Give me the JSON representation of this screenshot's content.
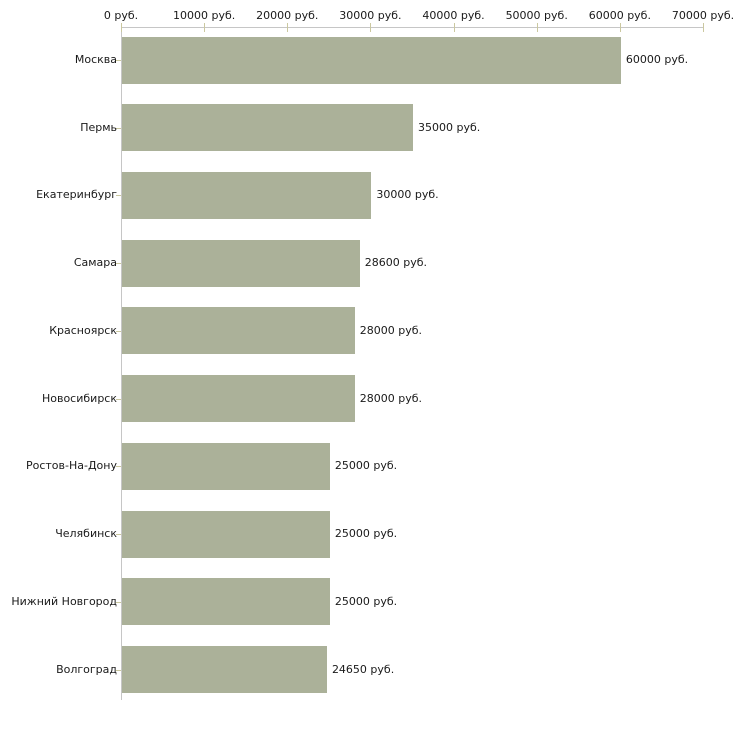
{
  "chart_data": {
    "type": "bar",
    "orientation": "horizontal",
    "title": "",
    "xlabel": "",
    "ylabel": "",
    "grid": false,
    "legend": null,
    "categories": [
      "Москва",
      "Пермь",
      "Екатеринбург",
      "Самара",
      "Красноярск",
      "Новосибирск",
      "Ростов-На-Дону",
      "Челябинск",
      "Нижний Новгород",
      "Волгоград"
    ],
    "values": [
      60000,
      35000,
      30000,
      28600,
      28000,
      28000,
      25000,
      25000,
      25000,
      24650
    ],
    "value_labels": [
      "60000 руб.",
      "35000 руб.",
      "30000 руб.",
      "28600 руб.",
      "28000 руб.",
      "28000 руб.",
      "25000 руб.",
      "25000 руб.",
      "25000 руб.",
      "24650 руб."
    ],
    "x_axis": {
      "min": 0,
      "max": 70000,
      "tick_interval": 10000,
      "tick_labels": [
        "0 руб.",
        "10000 руб.",
        "20000 руб.",
        "30000 руб.",
        "40000 руб.",
        "50000 руб.",
        "60000 руб.",
        "70000 руб."
      ]
    },
    "colors": {
      "bar": "#abb199",
      "axis": "#c6c6c6",
      "tick": "#cbc8a0",
      "text": "#1a1a1a",
      "background": "#ffffff"
    }
  }
}
